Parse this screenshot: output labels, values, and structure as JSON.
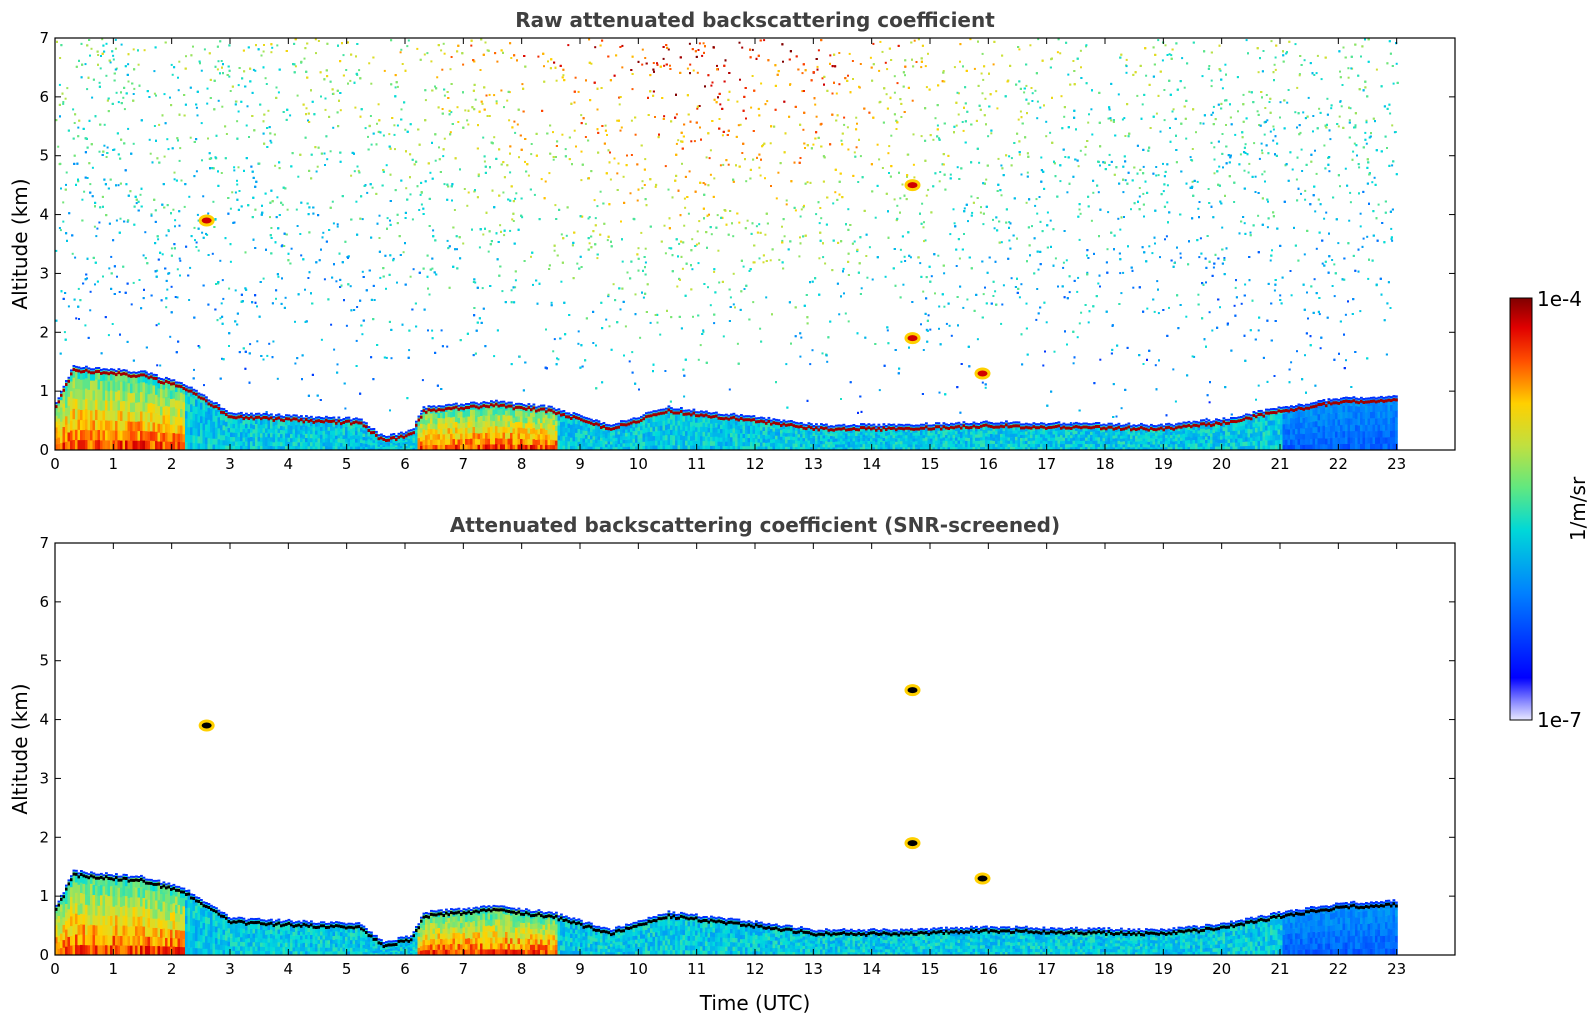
{
  "chart_data": [
    {
      "type": "heatmap",
      "title": "Raw attenuated backscattering coefficient",
      "xlabel": "",
      "ylabel": "Altitude (km)",
      "xlim": [
        0,
        24
      ],
      "ylim": [
        0,
        7
      ],
      "xticks": [
        "0",
        "1",
        "2",
        "3",
        "4",
        "5",
        "6",
        "7",
        "8",
        "9",
        "10",
        "11",
        "12",
        "13",
        "14",
        "15",
        "16",
        "17",
        "18",
        "19",
        "20",
        "21",
        "22",
        "23"
      ],
      "yticks": [
        "0",
        "1",
        "2",
        "3",
        "4",
        "5",
        "6",
        "7"
      ],
      "data_end_time": 23,
      "boundary_layer_top_km": [
        [
          0,
          0.8
        ],
        [
          0.3,
          1.4
        ],
        [
          1.5,
          1.3
        ],
        [
          2.2,
          1.1
        ],
        [
          3,
          0.6
        ],
        [
          5.2,
          0.5
        ],
        [
          5.6,
          0.2
        ],
        [
          6.1,
          0.3
        ],
        [
          6.3,
          0.7
        ],
        [
          7.5,
          0.8
        ],
        [
          8.5,
          0.7
        ],
        [
          9.5,
          0.4
        ],
        [
          10.5,
          0.7
        ],
        [
          12.3,
          0.5
        ],
        [
          13,
          0.4
        ],
        [
          14.5,
          0.4
        ],
        [
          16,
          0.45
        ],
        [
          19,
          0.4
        ],
        [
          20,
          0.5
        ],
        [
          21,
          0.7
        ],
        [
          22,
          0.85
        ],
        [
          23,
          0.9
        ]
      ],
      "cloud_patches": [
        {
          "time": 2.6,
          "altitude_km": 3.9
        },
        {
          "time": 14.7,
          "altitude_km": 4.5
        },
        {
          "time": 14.7,
          "altitude_km": 1.9
        },
        {
          "time": 15.9,
          "altitude_km": 1.3
        }
      ],
      "noise": true
    },
    {
      "type": "heatmap",
      "title": "Attenuated backscattering coefficient (SNR-screened)",
      "xlabel": "Time (UTC)",
      "ylabel": "Altitude (km)",
      "xlim": [
        0,
        24
      ],
      "ylim": [
        0,
        7
      ],
      "xticks": [
        "0",
        "1",
        "2",
        "3",
        "4",
        "5",
        "6",
        "7",
        "8",
        "9",
        "10",
        "11",
        "12",
        "13",
        "14",
        "15",
        "16",
        "17",
        "18",
        "19",
        "20",
        "21",
        "22",
        "23"
      ],
      "yticks": [
        "0",
        "1",
        "2",
        "3",
        "4",
        "5",
        "6",
        "7"
      ],
      "data_end_time": 23,
      "cloud_patches": [
        {
          "time": 2.6,
          "altitude_km": 3.9
        },
        {
          "time": 14.7,
          "altitude_km": 4.5
        },
        {
          "time": 14.7,
          "altitude_km": 1.9
        },
        {
          "time": 15.9,
          "altitude_km": 1.3
        }
      ],
      "noise": false
    }
  ],
  "colorbar": {
    "max_label": "1e-4",
    "min_label": "1e-7",
    "unit_label": "1/m/sr",
    "colormap": "jet"
  }
}
